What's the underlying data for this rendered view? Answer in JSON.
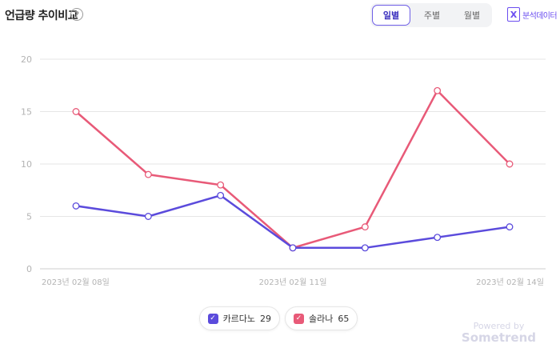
{
  "header": {
    "title": "언급량 추이비교",
    "help_icon": "question-circle-icon",
    "period_tabs": [
      {
        "label": "일별",
        "active": true
      },
      {
        "label": "주별",
        "active": false
      },
      {
        "label": "월별",
        "active": false
      }
    ],
    "analysis_button": {
      "icon": "x-document-icon",
      "logo_char": "X",
      "label": "분석데이터"
    }
  },
  "colors": {
    "accent": "#6a4df0",
    "series1": "#5b4bdc",
    "series2": "#e85a78"
  },
  "legend": [
    {
      "name": "카르다노",
      "count": "29"
    },
    {
      "name": "솔라나",
      "count": "65"
    }
  ],
  "powered": {
    "line1": "Powered by",
    "line2": "Sometrend"
  },
  "chart_data": {
    "type": "line",
    "x": [
      "2023년 02월 08일",
      "2023년 02월 09일",
      "2023년 02월 10일",
      "2023년 02월 11일",
      "2023년 02월 12일",
      "2023년 02월 13일",
      "2023년 02월 14일"
    ],
    "x_tick_labels": [
      "2023년 02월 08일",
      "2023년 02월 11일",
      "2023년 02월 14일"
    ],
    "series": [
      {
        "name": "카르다노",
        "values": [
          6,
          5,
          7,
          2,
          2,
          3,
          4
        ],
        "color": "#5b4bdc"
      },
      {
        "name": "솔라나",
        "values": [
          15,
          9,
          8,
          2,
          4,
          17,
          10
        ],
        "color": "#e85a78"
      }
    ],
    "ylim": [
      0,
      20
    ],
    "yticks": [
      0,
      5,
      10,
      15,
      20
    ],
    "grid": true,
    "legend_position": "bottom"
  }
}
